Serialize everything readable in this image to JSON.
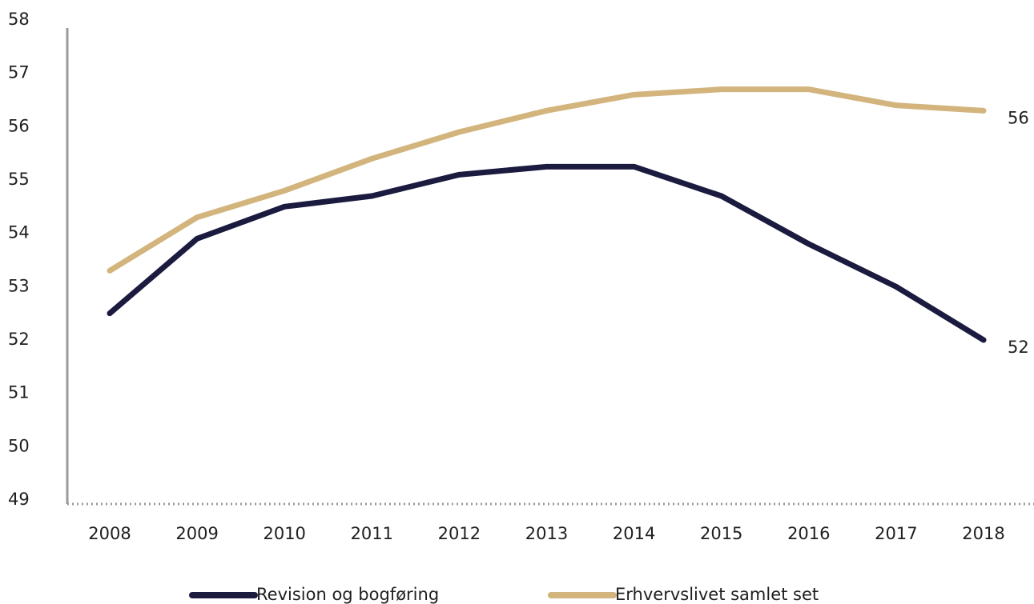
{
  "chart_data": {
    "type": "line",
    "categories": [
      "2008",
      "2009",
      "2010",
      "2011",
      "2012",
      "2013",
      "2014",
      "2015",
      "2016",
      "2017",
      "2018"
    ],
    "series": [
      {
        "name": "Revision og bogføring",
        "color": "#1b1a3f",
        "values": [
          52.5,
          53.9,
          54.5,
          54.7,
          55.1,
          55.25,
          55.25,
          54.7,
          53.8,
          53.0,
          52.0
        ],
        "end_label": "52"
      },
      {
        "name": "Erhvervslivet samlet set",
        "color": "#d2b47c",
        "values": [
          53.3,
          54.3,
          54.8,
          55.4,
          55.9,
          56.3,
          56.6,
          56.7,
          56.7,
          56.4,
          56.3
        ],
        "end_label": "56"
      }
    ],
    "ylim": [
      49,
      58
    ],
    "yticks": [
      49,
      50,
      51,
      52,
      53,
      54,
      55,
      56,
      57,
      58
    ],
    "legend": "bottom"
  }
}
